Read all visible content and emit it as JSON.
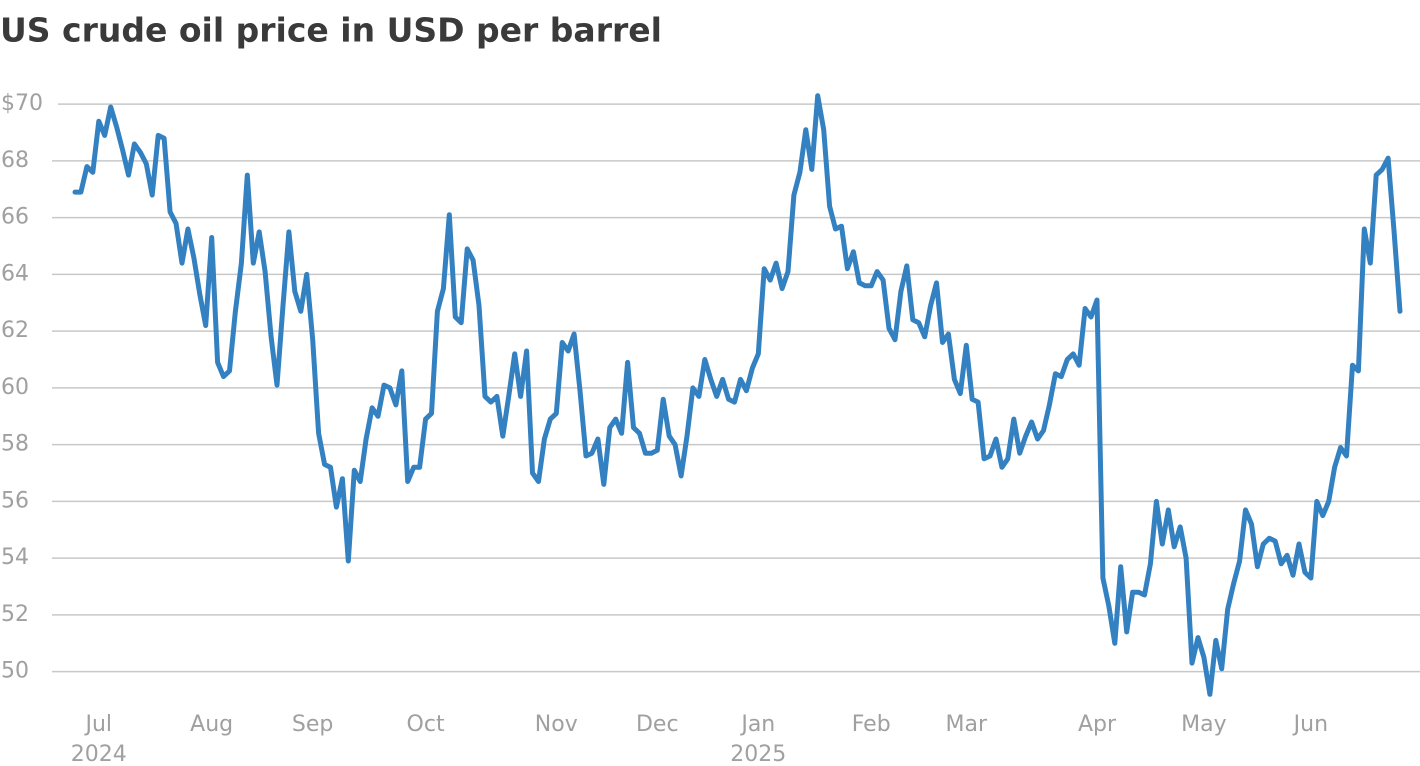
{
  "chart_data": {
    "type": "line",
    "title": "US crude oil price in USD per barrel",
    "categories": [
      null,
      null,
      null,
      null,
      "Jul",
      null,
      null,
      null,
      null,
      null,
      null,
      null,
      null,
      null,
      null,
      null,
      null,
      null,
      null,
      null,
      null,
      null,
      null,
      "Aug",
      null,
      null,
      null,
      null,
      null,
      null,
      null,
      null,
      null,
      null,
      null,
      null,
      null,
      null,
      null,
      null,
      "Sep",
      null,
      null,
      null,
      null,
      null,
      null,
      null,
      null,
      null,
      null,
      null,
      null,
      null,
      null,
      null,
      null,
      null,
      null,
      "Oct",
      null,
      null,
      null,
      null,
      null,
      null,
      null,
      null,
      null,
      null,
      null,
      null,
      null,
      null,
      null,
      null,
      null,
      null,
      null,
      null,
      null,
      "Nov",
      null,
      null,
      null,
      null,
      null,
      null,
      null,
      null,
      null,
      null,
      null,
      null,
      null,
      null,
      null,
      null,
      "Dec",
      null,
      null,
      null,
      null,
      null,
      null,
      null,
      null,
      null,
      null,
      null,
      null,
      null,
      null,
      null,
      null,
      "Jan",
      null,
      null,
      null,
      null,
      null,
      null,
      null,
      null,
      null,
      null,
      null,
      null,
      null,
      null,
      null,
      null,
      null,
      null,
      "Feb",
      null,
      null,
      null,
      null,
      null,
      null,
      null,
      null,
      null,
      null,
      null,
      null,
      null,
      null,
      null,
      "Mar",
      null,
      null,
      null,
      null,
      null,
      null,
      null,
      null,
      null,
      null,
      null,
      null,
      null,
      null,
      null,
      null,
      null,
      null,
      null,
      null,
      null,
      "Apr",
      null,
      null,
      null,
      null,
      null,
      null,
      null,
      null,
      null,
      null,
      null,
      null,
      null,
      null,
      null,
      null,
      null,
      "May",
      null,
      null,
      null,
      null,
      null,
      null,
      null,
      null,
      null,
      null,
      null,
      null,
      null,
      null,
      null,
      null,
      null,
      "Jun",
      null,
      null,
      null,
      null,
      null,
      null,
      null,
      null,
      null,
      null,
      null,
      null,
      null,
      null,
      null
    ],
    "category_years": [
      null,
      null,
      null,
      null,
      "2024",
      null,
      null,
      null,
      null,
      null,
      null,
      null,
      null,
      null,
      null,
      null,
      null,
      null,
      null,
      null,
      null,
      null,
      null,
      null,
      null,
      null,
      null,
      null,
      null,
      null,
      null,
      null,
      null,
      null,
      null,
      null,
      null,
      null,
      null,
      null,
      null,
      null,
      null,
      null,
      null,
      null,
      null,
      null,
      null,
      null,
      null,
      null,
      null,
      null,
      null,
      null,
      null,
      null,
      null,
      null,
      null,
      null,
      null,
      null,
      null,
      null,
      null,
      null,
      null,
      null,
      null,
      null,
      null,
      null,
      null,
      null,
      null,
      null,
      null,
      null,
      null,
      null,
      null,
      null,
      null,
      null,
      null,
      null,
      null,
      null,
      null,
      null,
      null,
      null,
      null,
      null,
      null,
      null,
      null,
      null,
      null,
      null,
      null,
      null,
      null,
      null,
      null,
      null,
      null,
      null,
      null,
      null,
      null,
      null,
      null,
      "2025",
      null,
      null,
      null,
      null,
      null,
      null,
      null,
      null,
      null,
      null,
      null,
      null,
      null,
      null,
      null,
      null,
      null,
      null,
      null,
      null,
      null,
      null,
      null,
      null,
      null,
      null,
      null,
      null,
      null,
      null,
      null,
      null,
      null,
      null,
      null,
      null,
      null,
      null,
      null,
      null,
      null,
      null,
      null,
      null,
      null,
      null,
      null,
      null,
      null,
      null,
      null,
      null,
      null,
      null,
      null,
      null,
      null,
      null,
      null,
      null,
      null,
      null,
      null,
      null,
      null,
      null,
      null,
      null,
      null,
      null,
      null,
      null,
      null,
      null,
      null,
      null,
      null,
      null,
      null,
      null,
      null,
      null,
      null,
      null,
      null,
      null,
      null,
      null,
      null,
      null,
      null,
      null,
      null,
      null,
      null,
      null,
      null,
      null,
      null,
      null,
      null,
      null,
      null,
      null,
      null,
      null,
      null,
      null
    ],
    "series": [
      {
        "name": "US crude oil",
        "color": "#3481c1",
        "values": [
          66.9,
          66.9,
          67.8,
          67.6,
          69.4,
          68.9,
          69.9,
          69.2,
          68.4,
          67.5,
          68.6,
          68.3,
          67.9,
          66.8,
          68.9,
          68.8,
          66.2,
          65.8,
          64.4,
          65.6,
          64.6,
          63.3,
          62.2,
          65.3,
          60.9,
          60.4,
          60.6,
          62.7,
          64.4,
          67.5,
          64.4,
          65.5,
          64.1,
          61.8,
          60.1,
          62.9,
          65.5,
          63.4,
          62.7,
          64.0,
          61.7,
          58.4,
          57.3,
          57.2,
          55.8,
          56.8,
          53.9,
          57.1,
          56.7,
          58.2,
          59.3,
          59.0,
          60.1,
          60.0,
          59.4,
          60.6,
          56.7,
          57.2,
          57.2,
          58.9,
          59.1,
          62.7,
          63.5,
          66.1,
          62.5,
          62.3,
          64.9,
          64.5,
          62.9,
          59.7,
          59.5,
          59.7,
          58.3,
          59.7,
          61.2,
          59.7,
          61.3,
          57.0,
          56.7,
          58.2,
          58.9,
          59.1,
          61.6,
          61.3,
          61.9,
          59.9,
          57.6,
          57.7,
          58.2,
          56.6,
          58.6,
          58.9,
          58.4,
          60.9,
          58.6,
          58.4,
          57.7,
          57.7,
          57.8,
          59.6,
          58.3,
          58.0,
          56.9,
          58.3,
          60.0,
          59.7,
          61.0,
          60.3,
          59.7,
          60.3,
          59.6,
          59.5,
          60.3,
          59.9,
          60.7,
          61.2,
          64.2,
          63.8,
          64.4,
          63.5,
          64.1,
          66.8,
          67.6,
          69.1,
          67.7,
          70.3,
          69.1,
          66.4,
          65.6,
          65.7,
          64.2,
          64.8,
          63.7,
          63.6,
          63.6,
          64.1,
          63.8,
          62.1,
          61.7,
          63.4,
          64.3,
          62.4,
          62.3,
          61.8,
          62.9,
          63.7,
          61.6,
          61.9,
          60.3,
          59.8,
          61.5,
          59.6,
          59.5,
          57.5,
          57.6,
          58.2,
          57.2,
          57.5,
          58.9,
          57.7,
          58.3,
          58.8,
          58.2,
          58.5,
          59.4,
          60.5,
          60.4,
          61.0,
          61.2,
          60.8,
          62.8,
          62.5,
          63.1,
          53.3,
          52.3,
          51.0,
          53.7,
          51.4,
          52.8,
          52.8,
          52.7,
          53.8,
          56.0,
          54.5,
          55.7,
          54.4,
          55.1,
          54.0,
          50.3,
          51.2,
          50.5,
          49.2,
          51.1,
          50.1,
          52.2,
          53.1,
          53.9,
          55.7,
          55.2,
          53.7,
          54.5,
          54.7,
          54.6,
          53.8,
          54.1,
          53.4,
          54.5,
          53.5,
          53.3,
          56.0,
          55.5,
          56.0,
          57.2,
          57.9,
          57.6,
          60.8,
          60.6,
          65.6,
          64.4,
          67.5,
          67.7,
          68.1,
          65.5,
          62.7
        ]
      }
    ],
    "ylim": [
      49,
      70.5
    ],
    "yticks": [
      50,
      52,
      54,
      56,
      58,
      60,
      62,
      64,
      66,
      68,
      {
        "value": 70,
        "label": "$70"
      }
    ],
    "grid": true
  }
}
